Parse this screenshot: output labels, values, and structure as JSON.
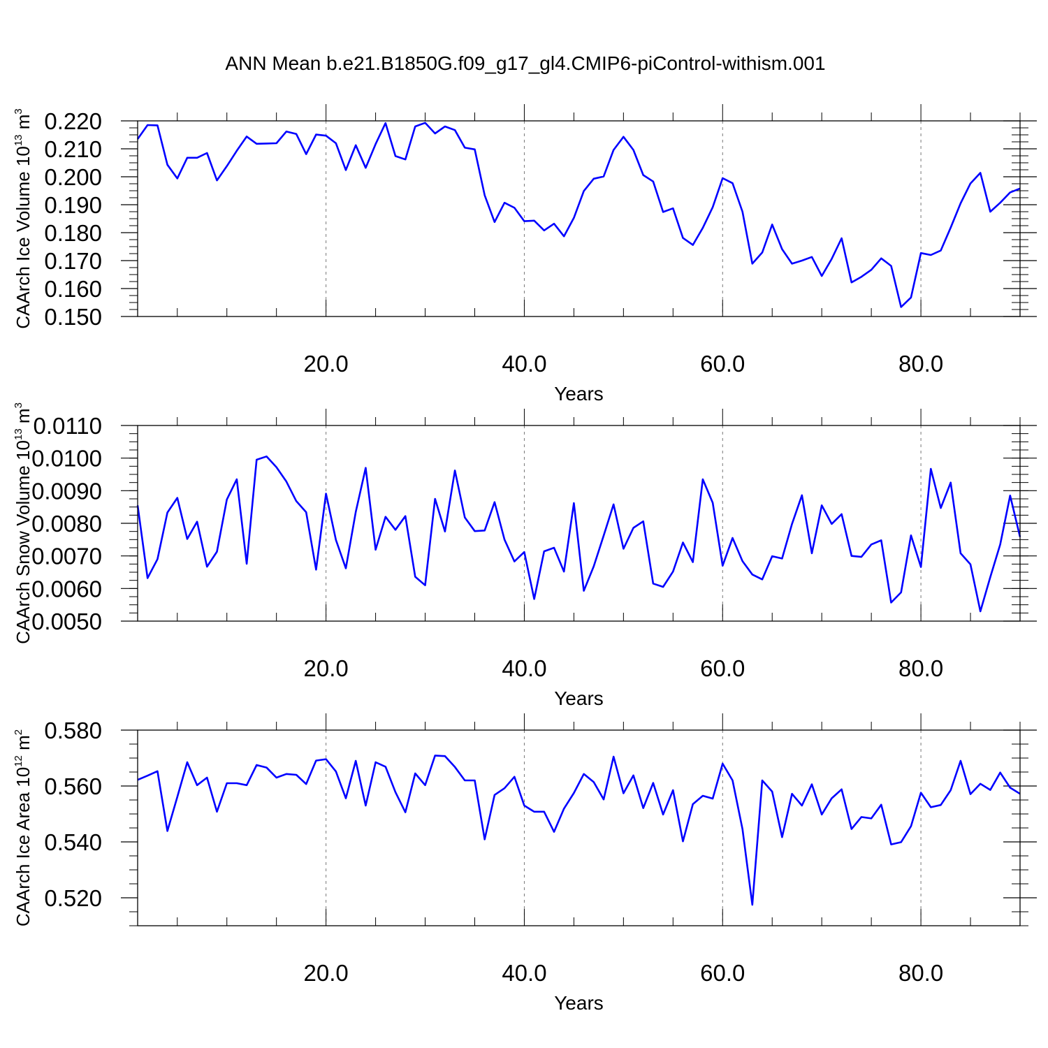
{
  "title": "ANN Mean b.e21.B1850G.f09_g17_gl4.CMIP6-piControl-withism.001",
  "line_color": "#0000ff",
  "chart_data": [
    {
      "type": "line",
      "xlabel": "Years",
      "ylabel": {
        "main": "CAArch Ice Volume 10",
        "exp": "13",
        "unit": " m",
        "unit_exp": "3"
      },
      "xlim": [
        1,
        90
      ],
      "ylim": [
        0.15,
        0.22
      ],
      "x_ticks": [
        "20.0",
        "40.0",
        "60.0",
        "80.0"
      ],
      "y_ticks": [
        "0.150",
        "0.160",
        "0.170",
        "0.180",
        "0.190",
        "0.200",
        "0.210",
        "0.220"
      ],
      "grid": "dashed vertical lines at labeled x ticks",
      "series": [
        {
          "values": [
            0.2135,
            0.2185,
            0.2184,
            0.2043,
            0.1994,
            0.2068,
            0.2068,
            0.2085,
            0.1987,
            0.2038,
            0.2093,
            0.2144,
            0.2118,
            0.2119,
            0.212,
            0.2162,
            0.2153,
            0.2081,
            0.2151,
            0.2147,
            0.212,
            0.2024,
            0.2113,
            0.2032,
            0.2117,
            0.2192,
            0.2074,
            0.2062,
            0.218,
            0.2193,
            0.2155,
            0.218,
            0.2167,
            0.2104,
            0.2098,
            0.1934,
            0.1838,
            0.1907,
            0.1889,
            0.1841,
            0.1843,
            0.1808,
            0.1832,
            0.1787,
            0.1853,
            0.1949,
            0.1993,
            0.2001,
            0.2096,
            0.2143,
            0.2096,
            0.2006,
            0.1983,
            0.1874,
            0.1887,
            0.1781,
            0.1756,
            0.1817,
            0.1891,
            0.1995,
            0.1977,
            0.1875,
            0.1689,
            0.1729,
            0.1829,
            0.1741,
            0.1689,
            0.17,
            0.1713,
            0.1645,
            0.1706,
            0.178,
            0.1622,
            0.1642,
            0.1667,
            0.1708,
            0.1681,
            0.1534,
            0.1568,
            0.1727,
            0.172,
            0.1736,
            0.1818,
            0.1905,
            0.1976,
            0.2014,
            0.1875,
            0.1907,
            0.1944,
            0.1958
          ]
        }
      ]
    },
    {
      "type": "line",
      "xlabel": "Years",
      "ylabel": {
        "main": "CAArch Snow Volume 10",
        "exp": "13",
        "unit": " m",
        "unit_exp": "3"
      },
      "xlim": [
        1,
        90
      ],
      "ylim": [
        0.005,
        0.011
      ],
      "x_ticks": [
        "20.0",
        "40.0",
        "60.0",
        "80.0"
      ],
      "y_ticks": [
        "0.0050",
        "0.0060",
        "0.0070",
        "0.0080",
        "0.0090",
        "0.0100",
        "0.0110"
      ],
      "grid": "dashed vertical lines at labeled x ticks",
      "series": [
        {
          "values": [
            0.00855,
            0.00632,
            0.0069,
            0.00833,
            0.00878,
            0.00752,
            0.00805,
            0.00667,
            0.00713,
            0.00873,
            0.00935,
            0.00676,
            0.00995,
            0.01005,
            0.00972,
            0.00928,
            0.00868,
            0.00834,
            0.00658,
            0.00891,
            0.00749,
            0.00662,
            0.00835,
            0.0097,
            0.00719,
            0.0082,
            0.0078,
            0.00822,
            0.00636,
            0.0061,
            0.00875,
            0.00775,
            0.00962,
            0.00818,
            0.00776,
            0.00778,
            0.00865,
            0.0075,
            0.00683,
            0.00712,
            0.00568,
            0.00714,
            0.00725,
            0.00652,
            0.00862,
            0.00593,
            0.00668,
            0.00762,
            0.00858,
            0.00722,
            0.00786,
            0.00806,
            0.00615,
            0.00605,
            0.00652,
            0.00741,
            0.00681,
            0.00935,
            0.00863,
            0.0067,
            0.00755,
            0.00684,
            0.00643,
            0.00628,
            0.00699,
            0.00692,
            0.00798,
            0.00886,
            0.00708,
            0.00855,
            0.00798,
            0.00828,
            0.007,
            0.00697,
            0.00735,
            0.00748,
            0.00557,
            0.00588,
            0.00763,
            0.00666,
            0.00967,
            0.00847,
            0.00925,
            0.00708,
            0.00674,
            0.0053,
            0.00635,
            0.00735,
            0.00885,
            0.00758
          ]
        }
      ]
    },
    {
      "type": "line",
      "xlabel": "Years",
      "ylabel": {
        "main": "CAArch Ice Area 10",
        "exp": "12",
        "unit": " m",
        "unit_exp": "2"
      },
      "xlim": [
        1,
        90
      ],
      "ylim": [
        0.51,
        0.58
      ],
      "x_ticks": [
        "20.0",
        "40.0",
        "60.0",
        "80.0"
      ],
      "y_ticks": [
        "0.520",
        "0.540",
        "0.560",
        "0.580"
      ],
      "grid": "dashed vertical lines at labeled x ticks",
      "series": [
        {
          "values": [
            0.5622,
            0.5637,
            0.5653,
            0.5439,
            0.5561,
            0.5685,
            0.5603,
            0.563,
            0.5508,
            0.561,
            0.561,
            0.5603,
            0.5675,
            0.5666,
            0.563,
            0.5643,
            0.564,
            0.5607,
            0.5691,
            0.5696,
            0.5652,
            0.5556,
            0.569,
            0.553,
            0.5685,
            0.5669,
            0.5578,
            0.5506,
            0.5645,
            0.5603,
            0.5709,
            0.5707,
            0.5668,
            0.562,
            0.562,
            0.5409,
            0.5568,
            0.5592,
            0.5633,
            0.553,
            0.5508,
            0.5508,
            0.5436,
            0.5519,
            0.5575,
            0.5643,
            0.5614,
            0.5552,
            0.5705,
            0.5574,
            0.5638,
            0.5521,
            0.5611,
            0.5498,
            0.5585,
            0.5402,
            0.5535,
            0.5565,
            0.5555,
            0.568,
            0.562,
            0.5446,
            0.5175,
            0.562,
            0.558,
            0.5417,
            0.5572,
            0.553,
            0.5606,
            0.5498,
            0.5556,
            0.5588,
            0.5446,
            0.5489,
            0.5484,
            0.5533,
            0.5391,
            0.5399,
            0.5456,
            0.5576,
            0.5524,
            0.5532,
            0.5585,
            0.569,
            0.5571,
            0.5608,
            0.5586,
            0.5648,
            0.5594,
            0.5572
          ]
        }
      ]
    }
  ]
}
